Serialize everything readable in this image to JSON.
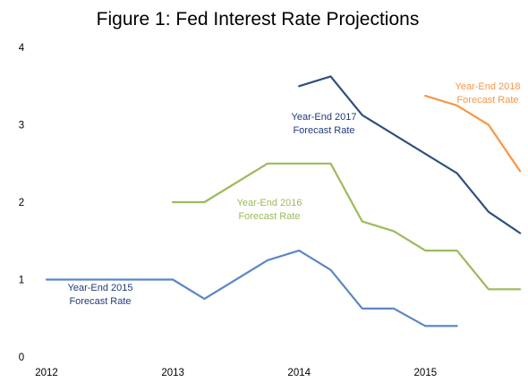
{
  "chart_data": {
    "type": "line",
    "title": "Figure 1: Fed Interest Rate Projections",
    "xlabel": "",
    "ylabel": "",
    "xlim": [
      2012,
      2015.77
    ],
    "ylim": [
      0,
      4
    ],
    "x_ticks": [
      2012,
      2013,
      2014,
      2015
    ],
    "y_ticks": [
      0,
      1,
      2,
      3,
      4
    ],
    "grid": false,
    "legend": "none",
    "series": [
      {
        "name": "Year-End 2015 Forecast Rate",
        "label_lines": [
          "Year-End 2015",
          "Forecast Rate"
        ],
        "label_color": "#1f3a7a",
        "color": "#5b87c5",
        "points": [
          [
            2012.0,
            1.0
          ],
          [
            2013.0,
            1.0
          ],
          [
            2013.25,
            0.75
          ],
          [
            2013.75,
            1.25
          ],
          [
            2014.0,
            1.375
          ],
          [
            2014.25,
            1.125
          ],
          [
            2014.5,
            0.625
          ],
          [
            2014.75,
            0.625
          ],
          [
            2015.0,
            0.4
          ],
          [
            2015.25,
            0.4
          ]
        ]
      },
      {
        "name": "Year-End 2016 Forecast Rate",
        "label_lines": [
          "Year-End 2016",
          "Forecast Rate"
        ],
        "label_color": "#9bbb59",
        "color": "#9bbb59",
        "points": [
          [
            2013.0,
            2.0
          ],
          [
            2013.25,
            2.0
          ],
          [
            2013.75,
            2.5
          ],
          [
            2014.0,
            2.5
          ],
          [
            2014.25,
            2.5
          ],
          [
            2014.5,
            1.75
          ],
          [
            2014.75,
            1.625
          ],
          [
            2015.0,
            1.375
          ],
          [
            2015.25,
            1.375
          ],
          [
            2015.5,
            0.875
          ],
          [
            2015.75,
            0.875
          ]
        ]
      },
      {
        "name": "Year-End 2017 Forecast Rate",
        "label_lines": [
          "Year-End 2017",
          "Forecast Rate"
        ],
        "label_color": "#1f3a7a",
        "color": "#2e5080",
        "points": [
          [
            2014.0,
            3.5
          ],
          [
            2014.25,
            3.625
          ],
          [
            2014.5,
            3.125
          ],
          [
            2015.25,
            2.375
          ],
          [
            2015.5,
            1.875
          ],
          [
            2015.75,
            1.6
          ]
        ]
      },
      {
        "name": "Year-End 2018 Forecast Rate",
        "label_lines": [
          "Year-End 2018",
          "Forecast Rate"
        ],
        "label_color": "#f79646",
        "color": "#f79646",
        "points": [
          [
            2015.0,
            3.375
          ],
          [
            2015.25,
            3.25
          ],
          [
            2015.5,
            3.0
          ],
          [
            2015.75,
            2.4
          ]
        ]
      }
    ]
  }
}
